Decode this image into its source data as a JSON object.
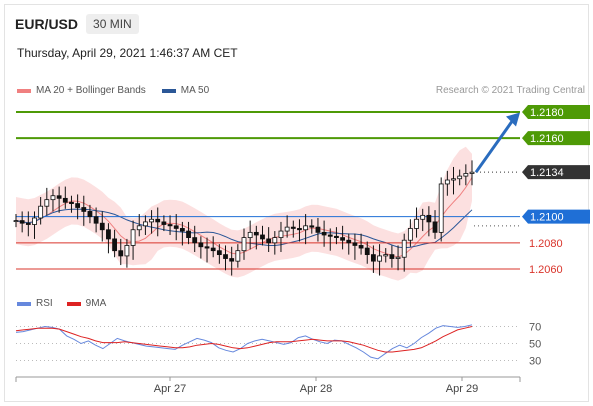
{
  "header": {
    "pair": "EUR/USD",
    "timeframe": "30 MIN",
    "datetime": "Thursday, April 29, 2021 1:46:37 AM CET"
  },
  "legend": {
    "bollinger": "MA 20 + Bollinger Bands",
    "ma50": "MA 50",
    "credit": "Research © 2021 Trading Central"
  },
  "rsi_legend": {
    "rsi": "RSI",
    "ma9": "9MA"
  },
  "colors": {
    "resistance": "#4e9a06",
    "pivot": "#1f6fd6",
    "support": "#d9342b",
    "current": "#333333",
    "bollinger": "#f08080",
    "ma50": "#2b5797",
    "rsi": "#6688dd",
    "ma9": "#dd2222",
    "arrow": "#2a6cbe"
  },
  "chart_data": [
    {
      "type": "line",
      "title": "EUR/USD 30 MIN",
      "x": [
        "Apr 27",
        "Apr 28",
        "Apr 29"
      ],
      "ylim": [
        1.204,
        1.22
      ],
      "levels": [
        {
          "name": "resistance_2",
          "value": 1.218,
          "label": "1.2180"
        },
        {
          "name": "resistance_1",
          "value": 1.216,
          "label": "1.2160"
        },
        {
          "name": "current",
          "value": 1.2134,
          "label": "1.2134"
        },
        {
          "name": "pivot",
          "value": 1.21,
          "label": "1.2100"
        },
        {
          "name": "support_1",
          "value": 1.208,
          "label": "1.2080"
        },
        {
          "name": "support_2",
          "value": 1.206,
          "label": "1.2060"
        }
      ],
      "price_series": [
        1.2097,
        1.2095,
        1.2094,
        1.2099,
        1.2108,
        1.2113,
        1.2116,
        1.2114,
        1.2111,
        1.211,
        1.2107,
        1.2104,
        1.21,
        1.2095,
        1.209,
        1.2083,
        1.2074,
        1.207,
        1.2078,
        1.209,
        1.2093,
        1.2096,
        1.2098,
        1.2096,
        1.2094,
        1.2093,
        1.2091,
        1.2089,
        1.2084,
        1.208,
        1.2077,
        1.2076,
        1.2074,
        1.2071,
        1.2068,
        1.2066,
        1.2074,
        1.2084,
        1.2088,
        1.2086,
        1.2083,
        1.208,
        1.2084,
        1.2089,
        1.2092,
        1.2091,
        1.209,
        1.2093,
        1.2092,
        1.2088,
        1.2086,
        1.2085,
        1.2084,
        1.2082,
        1.208,
        1.2078,
        1.2076,
        1.2071,
        1.2066,
        1.207,
        1.2071,
        1.2068,
        1.2069,
        1.2082,
        1.2091,
        1.2098,
        1.2101,
        1.2096,
        1.2088,
        1.2125,
        1.2128,
        1.2129,
        1.2131,
        1.2133,
        1.2134
      ],
      "legend": [
        "MA 20 + Bollinger Bands",
        "MA 50"
      ]
    },
    {
      "type": "line",
      "title": "RSI",
      "ylim": [
        20,
        80
      ],
      "ticks": [
        70,
        50,
        30
      ],
      "series": [
        {
          "name": "RSI",
          "values": [
            63,
            64,
            66,
            68,
            70,
            69,
            67,
            59,
            55,
            50,
            53,
            48,
            44,
            50,
            56,
            53,
            51,
            49,
            47,
            46,
            45,
            44,
            43,
            48,
            52,
            56,
            54,
            51,
            45,
            42,
            40,
            44,
            50,
            53,
            55,
            53,
            51,
            49,
            51,
            57,
            59,
            55,
            52,
            50,
            54,
            53,
            49,
            45,
            40,
            34,
            32,
            38,
            44,
            48,
            45,
            50,
            57,
            62,
            68,
            71,
            70,
            69,
            70,
            72
          ]
        },
        {
          "name": "9MA",
          "values": [
            65,
            66,
            67,
            68,
            68,
            68,
            67,
            64,
            61,
            58,
            56,
            53,
            51,
            51,
            51,
            52,
            51,
            50,
            49,
            48,
            47,
            46,
            45,
            45,
            46,
            48,
            49,
            50,
            49,
            47,
            45,
            44,
            45,
            47,
            49,
            51,
            52,
            52,
            52,
            53,
            54,
            55,
            54,
            53,
            53,
            53,
            52,
            50,
            48,
            45,
            42,
            40,
            40,
            41,
            42,
            43,
            45,
            49,
            53,
            58,
            62,
            66,
            68,
            70
          ]
        }
      ]
    }
  ]
}
